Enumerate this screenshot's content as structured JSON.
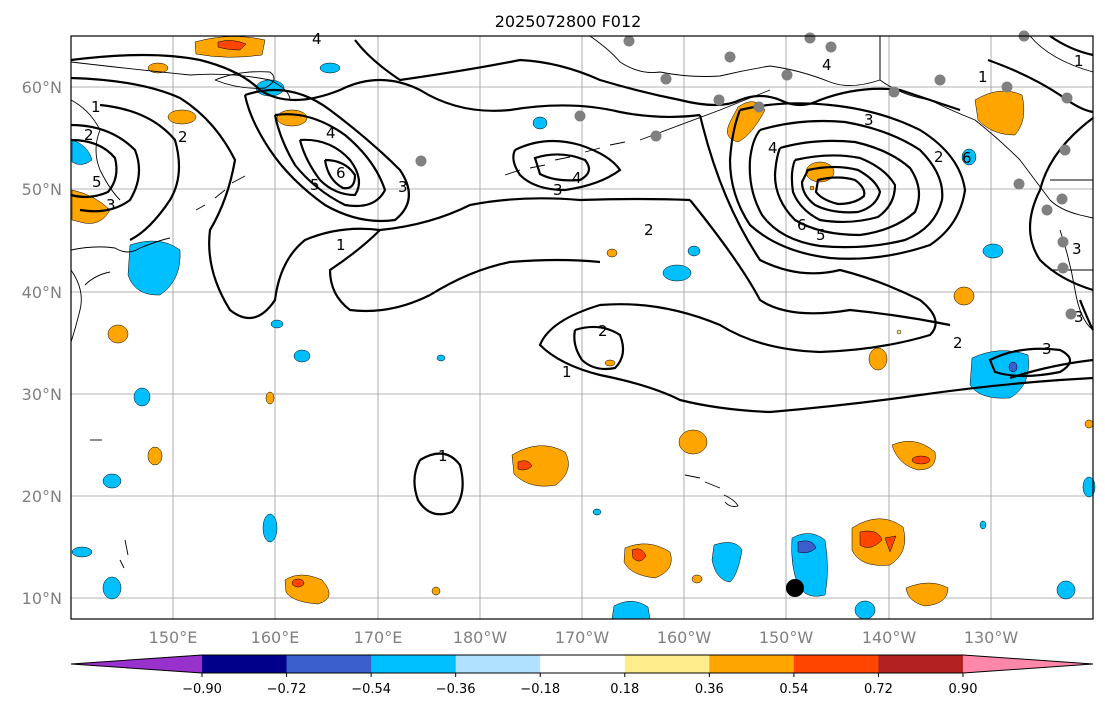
{
  "title": "2025072800 F012",
  "lat_labels": [
    "60°N",
    "50°N",
    "40°N",
    "30°N",
    "20°N",
    "10°N"
  ],
  "lon_labels": [
    "150°E",
    "160°E",
    "170°E",
    "180°W",
    "170°W",
    "160°W",
    "150°W",
    "140°W",
    "130°W"
  ],
  "colorbar": {
    "colors": [
      "#9932CC",
      "#00008B",
      "#3A5FCD",
      "#00BFFF",
      "#B0E2FF",
      "#FFFFFF",
      "#FFEC8B",
      "#FFA500",
      "#FF4500",
      "#B22222",
      "#FF88AA"
    ],
    "ticks": [
      "−0.90",
      "−0.72",
      "−0.54",
      "−0.36",
      "−0.18",
      "0.18",
      "0.36",
      "0.54",
      "0.72",
      "0.90"
    ]
  },
  "contour_labels": [
    "1",
    "2",
    "3",
    "4",
    "5",
    "6"
  ],
  "extent": {
    "lon_min": 140,
    "lon_max": 240,
    "lat_min": 8,
    "lat_max": 65
  }
}
